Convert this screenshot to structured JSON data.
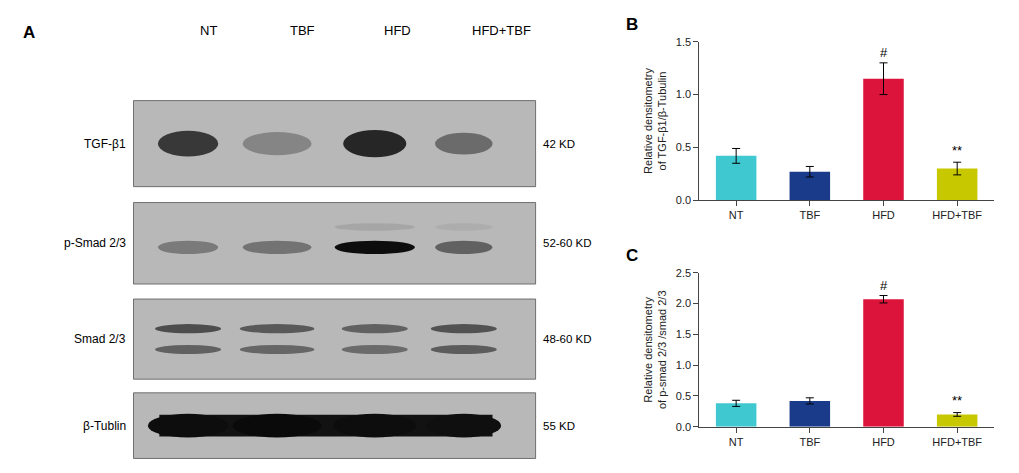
{
  "chart_data": [
    {
      "type": "blot",
      "title": "A",
      "categories": [
        "NT",
        "TBF",
        "HFD",
        "HFD+TBF"
      ],
      "rows": [
        {
          "name": "TGF-β1",
          "label": "42 KD"
        },
        {
          "name": "p-Smad 2/3",
          "label": "52-60 KD"
        },
        {
          "name": "Smad 2/3",
          "label": "48-60 KD"
        },
        {
          "name": "β-Tublin",
          "label": "55 KD"
        }
      ]
    },
    {
      "type": "bar",
      "title": "B",
      "categories": [
        "NT",
        "TBF",
        "HFD",
        "HFD+TBF"
      ],
      "values": [
        0.42,
        0.27,
        1.15,
        0.3
      ],
      "errors": [
        0.07,
        0.05,
        0.15,
        0.06
      ],
      "colors": [
        "#40C8D0",
        "#1A3A8A",
        "#DC143C",
        "#C8C800"
      ],
      "ylabel": "Relative densitometry\nof TGF-β1/β-Tubulin",
      "ylim": [
        0,
        1.5
      ],
      "yticks": [
        {
          "value": 0.0,
          "label": "0.0"
        },
        0.5,
        {
          "value": 1.0,
          "label": "1.0"
        },
        1.5
      ],
      "grid": false,
      "annotations": [
        {
          "text": "#",
          "x": 2,
          "y": 1.31
        },
        {
          "text": "**",
          "x": 3,
          "y": 0.38
        }
      ]
    },
    {
      "type": "bar",
      "title": "C",
      "categories": [
        "NT",
        "TBF",
        "HFD",
        "HFD+TBF"
      ],
      "values": [
        0.38,
        0.42,
        2.07,
        0.2
      ],
      "errors": [
        0.05,
        0.05,
        0.06,
        0.03
      ],
      "colors": [
        "#40C8D0",
        "#1A3A8A",
        "#DC143C",
        "#C8C800"
      ],
      "ylabel": "Relative densitometry\nof p-smad 2/3 /smad 2/3",
      "ylim": [
        0,
        2.5
      ],
      "yticks": [
        {
          "value": 0.0,
          "label": "0.0"
        },
        0.5,
        {
          "value": 1.0,
          "label": "1.0"
        },
        1.5,
        {
          "value": 2.0,
          "label": "2.0"
        },
        2.5
      ],
      "grid": false,
      "annotations": [
        {
          "text": "#",
          "x": 2,
          "y": 2.14
        },
        {
          "text": "**",
          "x": 3,
          "y": 0.27
        }
      ]
    }
  ]
}
